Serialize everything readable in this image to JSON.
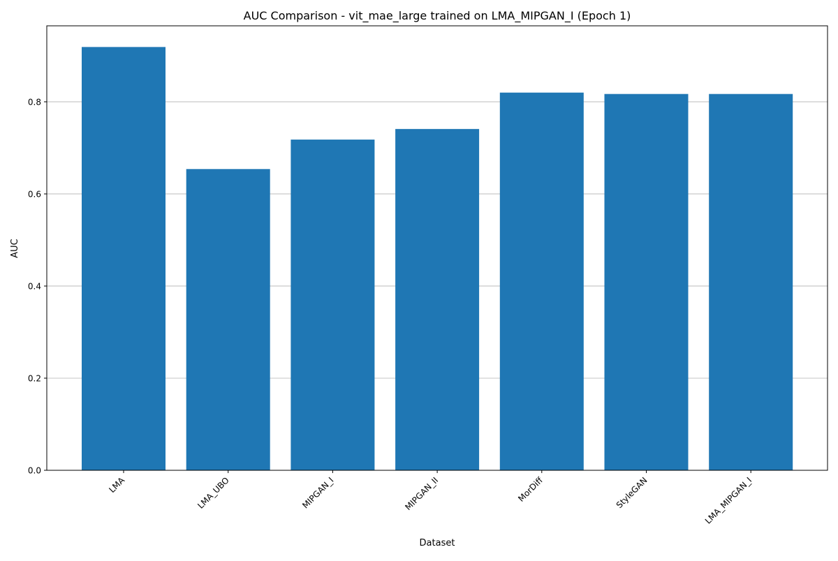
{
  "chart_data": {
    "type": "bar",
    "title": "AUC Comparison - vit_mae_large trained on LMA_MIPGAN_I (Epoch 1)",
    "xlabel": "Dataset",
    "ylabel": "AUC",
    "categories": [
      "LMA",
      "LMA_UBO",
      "MIPGAN_I",
      "MIPGAN_II",
      "MorDiff",
      "StyleGAN",
      "LMA_MIPGAN_I"
    ],
    "values": [
      0.919,
      0.654,
      0.718,
      0.741,
      0.82,
      0.817,
      0.817
    ],
    "ylim": [
      0,
      0.965
    ],
    "yticks": [
      0.0,
      0.2,
      0.4,
      0.6,
      0.8
    ],
    "ytick_labels": [
      "0.0",
      "0.2",
      "0.4",
      "0.6",
      "0.8"
    ],
    "grid": "y-major",
    "legend": "none",
    "bar_color": "#1f77b4",
    "grid_color": "#b0b0b0"
  }
}
